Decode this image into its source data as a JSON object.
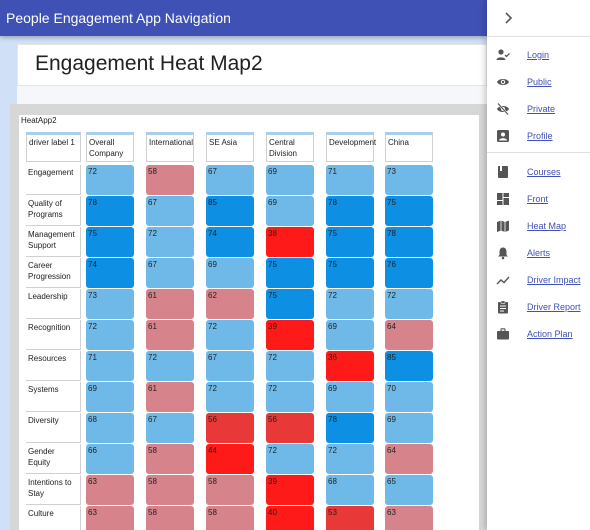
{
  "app": {
    "title": "People Engagement App Navigation"
  },
  "page": {
    "title": "Engagement Heat Map2"
  },
  "heatmap": {
    "caption": "HeatApp2",
    "corner_label": "driver label 1",
    "columns": [
      "Overall Company",
      "International",
      "SE Asia",
      "Central Division",
      "Development",
      "China"
    ],
    "rows": [
      {
        "label": "Engagement",
        "values": [
          72,
          58,
          67,
          69,
          71,
          73
        ]
      },
      {
        "label": "Quality of Programs",
        "values": [
          78,
          67,
          85,
          69,
          78,
          75
        ]
      },
      {
        "label": "Management Support",
        "values": [
          75,
          72,
          74,
          38,
          75,
          78
        ]
      },
      {
        "label": "Career Progression",
        "values": [
          74,
          67,
          69,
          75,
          75,
          76
        ]
      },
      {
        "label": "Leadership",
        "values": [
          73,
          61,
          62,
          75,
          72,
          72
        ]
      },
      {
        "label": "Recognition",
        "values": [
          72,
          61,
          72,
          39,
          69,
          64
        ]
      },
      {
        "label": "Resources",
        "values": [
          71,
          72,
          67,
          72,
          36,
          85
        ]
      },
      {
        "label": "Systems",
        "values": [
          69,
          61,
          72,
          72,
          69,
          70
        ]
      },
      {
        "label": "Diversity",
        "values": [
          68,
          67,
          56,
          56,
          78,
          69
        ]
      },
      {
        "label": "Gender Equity",
        "values": [
          66,
          58,
          44,
          72,
          72,
          64
        ]
      },
      {
        "label": "Intentions to Stay",
        "values": [
          63,
          58,
          58,
          39,
          68,
          65
        ]
      },
      {
        "label": "Culture",
        "values": [
          63,
          58,
          58,
          40,
          53,
          63
        ]
      }
    ],
    "colors": {
      "high": "#0d8fe3",
      "mid": "#6fb9e8",
      "low_mild": "#d6838b",
      "low_strong": "#e83838",
      "low_severe": "#ff1a1a"
    }
  },
  "sidebar": {
    "items": [
      {
        "label": "Login",
        "icon": "person-check-icon"
      },
      {
        "label": "Public",
        "icon": "eye-icon"
      },
      {
        "label": "Private",
        "icon": "eye-off-icon"
      },
      {
        "label": "Profile",
        "icon": "account-box-icon"
      },
      {
        "label": "Courses",
        "icon": "book-icon"
      },
      {
        "label": "Front",
        "icon": "dashboard-icon"
      },
      {
        "label": "Heat Map",
        "icon": "map-icon"
      },
      {
        "label": "Alerts",
        "icon": "bell-icon"
      },
      {
        "label": "Driver Impact",
        "icon": "trending-icon"
      },
      {
        "label": "Driver Report",
        "icon": "clipboard-icon"
      },
      {
        "label": "Action Plan",
        "icon": "briefcase-icon"
      }
    ]
  }
}
